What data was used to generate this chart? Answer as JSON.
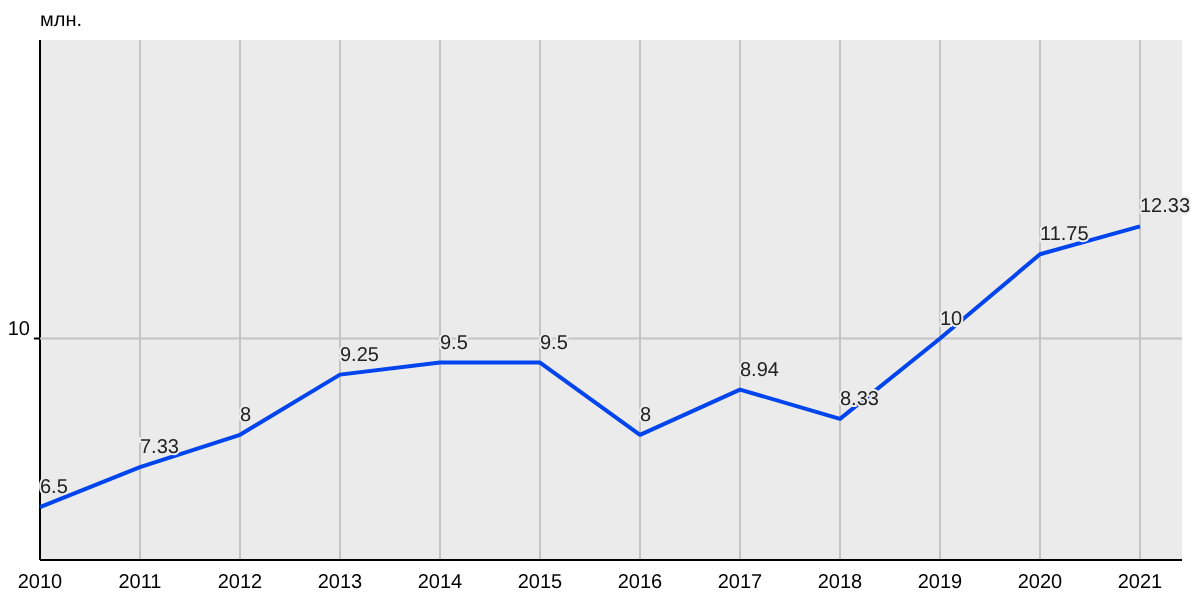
{
  "chart_data": {
    "type": "line",
    "ylabel": "млн.",
    "x": [
      2010,
      2011,
      2012,
      2013,
      2014,
      2015,
      2016,
      2017,
      2018,
      2019,
      2020,
      2021
    ],
    "series": [
      {
        "color": "#0044ee",
        "values": [
          6.5,
          7.33,
          8,
          9.25,
          9.5,
          9.5,
          8,
          8.94,
          8.33,
          10,
          11.75,
          12.33
        ]
      }
    ],
    "xlim": [
      2010,
      2021.42
    ],
    "xticks": [
      2010,
      2011,
      2012,
      2013,
      2014,
      2015,
      2016,
      2017,
      2018,
      2019,
      2020,
      2021
    ],
    "ylim": [
      5.4,
      16.2
    ],
    "ref_lines": [
      {
        "axis": "y",
        "value": 10,
        "label": "10",
        "color": "#c4c4c4"
      }
    ],
    "grid": "x",
    "data_labels": true,
    "marker": "none",
    "line_style": "solid"
  }
}
